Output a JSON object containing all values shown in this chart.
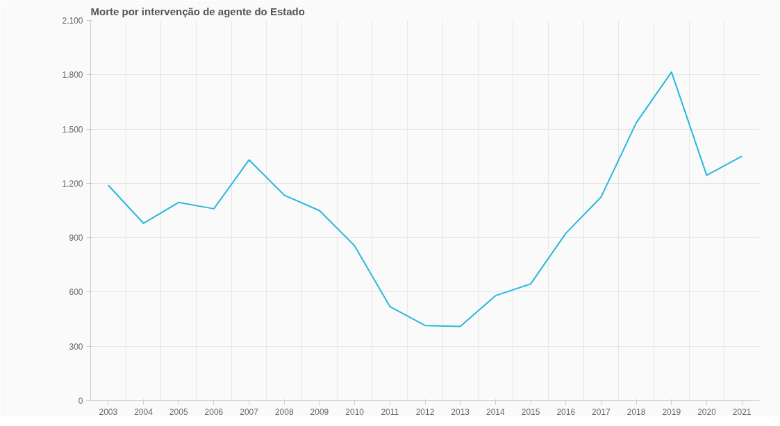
{
  "chart_data": {
    "type": "line",
    "title": "Morte por intervenção de agente do Estado",
    "categories": [
      "2003",
      "2004",
      "2005",
      "2006",
      "2007",
      "2008",
      "2009",
      "2010",
      "2011",
      "2012",
      "2013",
      "2014",
      "2015",
      "2016",
      "2017",
      "2018",
      "2019",
      "2020",
      "2021"
    ],
    "series": [
      {
        "color": "#29b8db",
        "values": [
          1190,
          980,
          1095,
          1060,
          1330,
          1135,
          1050,
          855,
          520,
          415,
          410,
          580,
          645,
          925,
          1125,
          1535,
          1815,
          1245,
          1350
        ]
      }
    ],
    "ylim": [
      0,
      2100
    ],
    "yticks": [
      0,
      300,
      600,
      900,
      {
        "value": 1200,
        "label": "1.200"
      },
      {
        "value": 1500,
        "label": "1.500"
      },
      {
        "value": 1800,
        "label": "1.800"
      },
      {
        "value": 2100,
        "label": "2.100"
      }
    ],
    "grid": true,
    "marker": "none"
  }
}
